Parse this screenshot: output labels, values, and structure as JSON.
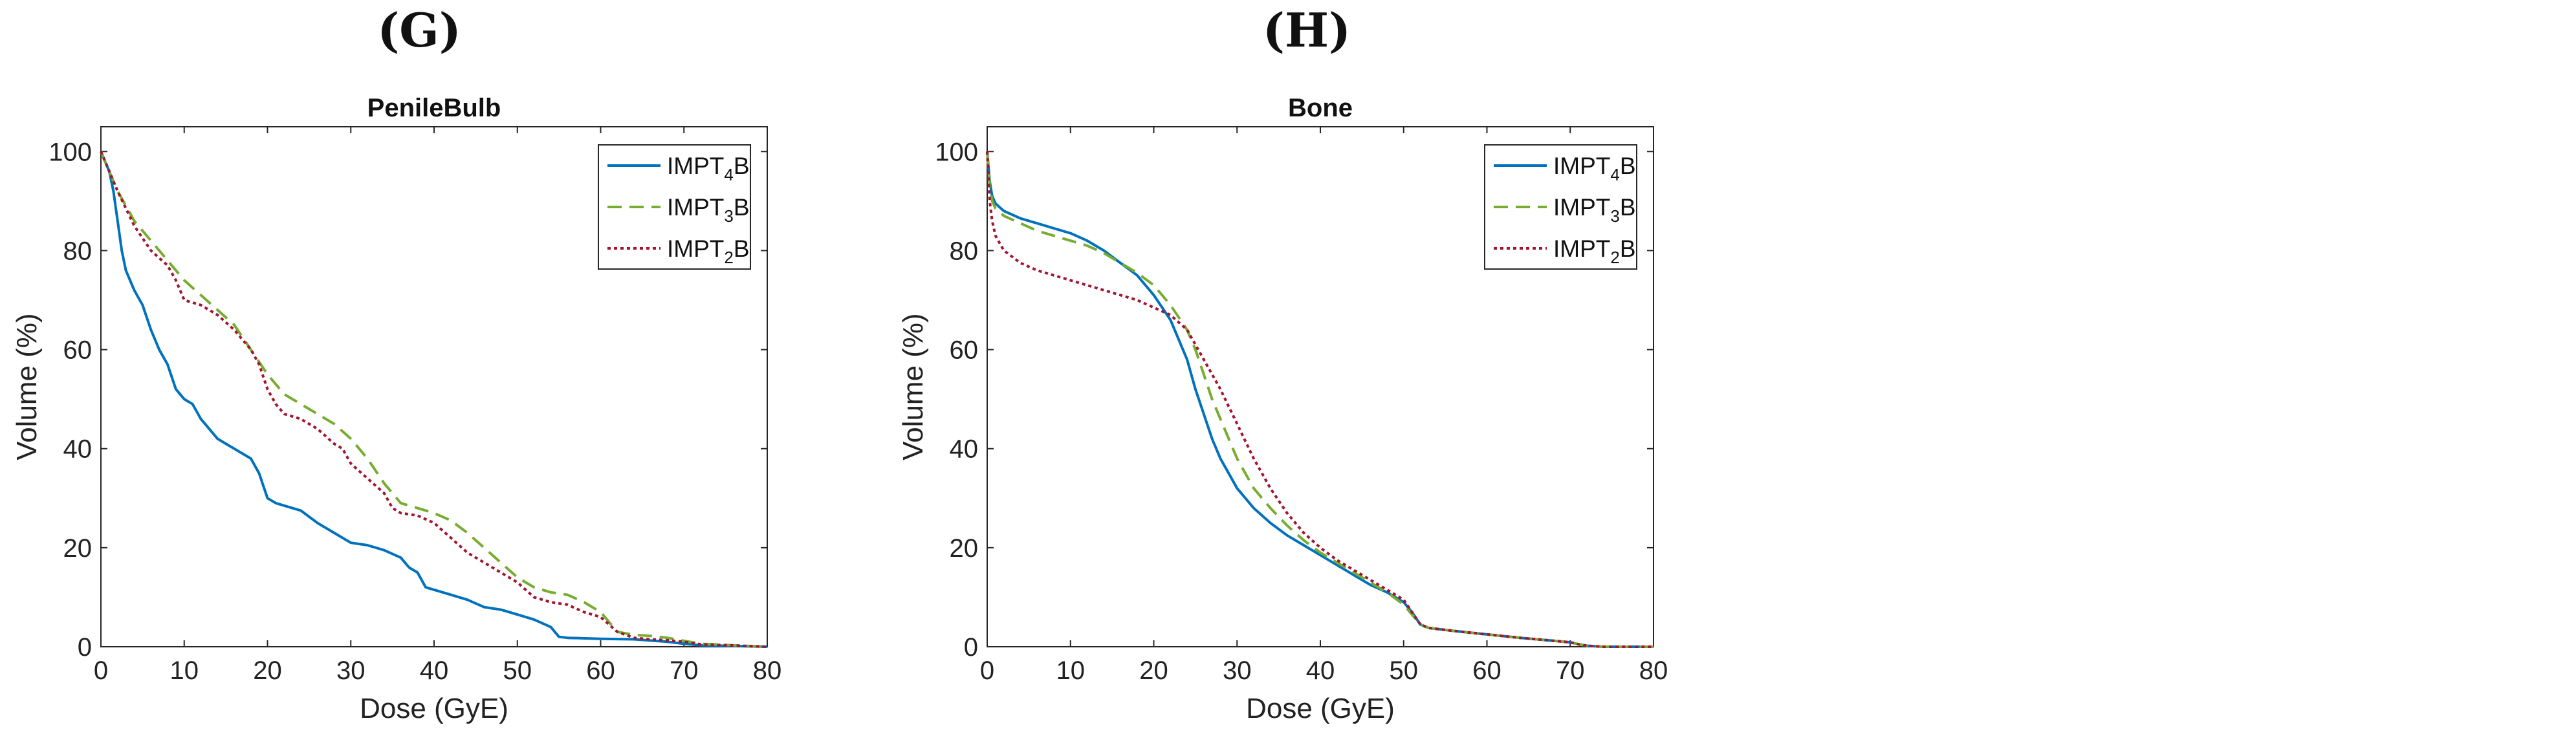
{
  "panels": [
    {
      "label": "(G)"
    },
    {
      "label": "(H)"
    }
  ],
  "chart_data": [
    {
      "type": "line",
      "title": "PenileBulb",
      "xlabel": "Dose (GyE)",
      "ylabel": "Volume (%)",
      "xlim": [
        0,
        80
      ],
      "ylim": [
        0,
        105
      ],
      "xticks": [
        0,
        10,
        20,
        30,
        40,
        50,
        60,
        70,
        80
      ],
      "yticks": [
        0,
        20,
        40,
        60,
        80,
        100
      ],
      "legend_position": "top-right",
      "series": [
        {
          "name": "IMPT4B",
          "base": "IMPT",
          "sub": "4",
          "suffix": "B",
          "color": "#0072BD",
          "style": "solid",
          "x": [
            0,
            1,
            1.5,
            2,
            2.5,
            3,
            4,
            5,
            6,
            7,
            8,
            9,
            10,
            11,
            12,
            13,
            14,
            15,
            16,
            17,
            18,
            19,
            20,
            21,
            22,
            24,
            26,
            28,
            30,
            32,
            34,
            36,
            37,
            38,
            39,
            40,
            42,
            44,
            46,
            48,
            50,
            52,
            54,
            55,
            56,
            60,
            64,
            68,
            70,
            72,
            80
          ],
          "y": [
            100,
            96,
            92,
            86,
            80,
            76,
            72,
            69,
            64,
            60,
            57,
            52,
            50,
            49,
            46,
            44,
            42,
            41,
            40,
            39,
            38,
            35,
            30,
            29,
            28.5,
            27.5,
            25,
            23,
            21,
            20.5,
            19.5,
            18,
            16,
            15,
            12,
            11.5,
            10.5,
            9.5,
            8,
            7.5,
            6.5,
            5.5,
            4,
            2,
            1.8,
            1.6,
            1.5,
            1.0,
            0.6,
            0.3,
            0
          ]
        },
        {
          "name": "IMPT3B",
          "base": "IMPT",
          "sub": "3",
          "suffix": "B",
          "color": "#77AC30",
          "style": "dashed",
          "x": [
            0,
            2,
            4,
            6,
            8,
            10,
            12,
            14,
            16,
            18,
            20,
            22,
            24,
            26,
            28,
            30,
            32,
            34,
            36,
            38,
            40,
            42,
            44,
            46,
            48,
            50,
            52,
            54,
            56,
            58,
            60,
            62,
            64,
            66,
            68,
            70,
            72,
            80
          ],
          "y": [
            100,
            92,
            86,
            82,
            78,
            74,
            71,
            68,
            65,
            60,
            55,
            51,
            49,
            47,
            45,
            42,
            38,
            33,
            29,
            28,
            27,
            25.5,
            23,
            20,
            17,
            14,
            12,
            11,
            10.5,
            9,
            7,
            3,
            2.4,
            2.2,
            1.8,
            1.2,
            0.6,
            0
          ]
        },
        {
          "name": "IMPT2B",
          "base": "IMPT",
          "sub": "2",
          "suffix": "B",
          "color": "#A2142F",
          "style": "dotted",
          "x": [
            0,
            2,
            4,
            6,
            8,
            9,
            10,
            12,
            14,
            16,
            18,
            19,
            20,
            21,
            22,
            24,
            26,
            28,
            29,
            30,
            32,
            34,
            35,
            36,
            38,
            40,
            42,
            44,
            46,
            48,
            50,
            52,
            54,
            56,
            58,
            60,
            62,
            64,
            66,
            68,
            70,
            72,
            80
          ],
          "y": [
            100,
            92,
            85,
            80,
            77,
            74,
            70,
            69,
            67,
            64,
            60,
            57,
            52,
            49,
            47,
            46,
            44,
            41,
            40,
            37,
            34,
            31,
            28,
            27,
            26.5,
            25,
            22,
            19,
            17,
            15,
            13,
            10,
            9,
            8.5,
            7,
            6,
            3,
            1.8,
            1.5,
            1.3,
            1.0,
            0.5,
            0
          ]
        }
      ]
    },
    {
      "type": "line",
      "title": "Bone",
      "xlabel": "Dose (GyE)",
      "ylabel": "Volume (%)",
      "xlim": [
        0,
        80
      ],
      "ylim": [
        0,
        105
      ],
      "xticks": [
        0,
        10,
        20,
        30,
        40,
        50,
        60,
        70,
        80
      ],
      "yticks": [
        0,
        20,
        40,
        60,
        80,
        100
      ],
      "legend_position": "top-right",
      "series": [
        {
          "name": "IMPT4B",
          "base": "IMPT",
          "sub": "4",
          "suffix": "B",
          "color": "#0072BD",
          "style": "solid",
          "x": [
            0,
            0.3,
            0.6,
            1,
            2,
            4,
            6,
            8,
            10,
            12,
            14,
            16,
            18,
            20,
            22,
            24,
            25,
            26,
            27,
            28,
            30,
            32,
            34,
            36,
            38,
            40,
            42,
            44,
            46,
            48,
            50,
            51,
            52,
            53,
            56,
            60,
            64,
            68,
            70,
            71,
            72,
            74,
            80
          ],
          "y": [
            100,
            94,
            91,
            89.5,
            88,
            86.5,
            85.5,
            84.5,
            83.5,
            82,
            80,
            77.5,
            75,
            71,
            66,
            58,
            52,
            47,
            42,
            38,
            32,
            28,
            25,
            22.5,
            20.5,
            18.5,
            16.5,
            14.5,
            12.5,
            11,
            9,
            7,
            4.5,
            3.8,
            3.2,
            2.5,
            1.8,
            1.2,
            0.9,
            0.5,
            0.2,
            0,
            0
          ]
        },
        {
          "name": "IMPT3B",
          "base": "IMPT",
          "sub": "3",
          "suffix": "B",
          "color": "#77AC30",
          "style": "dashed",
          "x": [
            0,
            0.3,
            0.6,
            1,
            2,
            4,
            6,
            8,
            10,
            12,
            14,
            16,
            18,
            20,
            22,
            24,
            25,
            26,
            27,
            28,
            30,
            32,
            34,
            36,
            38,
            40,
            42,
            44,
            46,
            48,
            50,
            51,
            52,
            53,
            56,
            60,
            64,
            68,
            70,
            71,
            72,
            74,
            80
          ],
          "y": [
            100,
            93,
            90,
            88.5,
            87,
            85.5,
            84,
            83,
            82,
            81,
            79.5,
            77.5,
            75.5,
            73,
            69,
            64,
            60,
            55,
            50,
            46,
            38,
            32,
            28,
            24.5,
            21.5,
            19,
            17,
            15,
            13,
            11,
            8.5,
            6.5,
            4.5,
            3.8,
            3.2,
            2.5,
            1.8,
            1.2,
            0.9,
            0.5,
            0.2,
            0,
            0
          ]
        },
        {
          "name": "IMPT2B",
          "base": "IMPT",
          "sub": "2",
          "suffix": "B",
          "color": "#A2142F",
          "style": "dotted",
          "x": [
            0,
            0.3,
            0.6,
            1,
            2,
            4,
            6,
            8,
            10,
            12,
            14,
            16,
            18,
            20,
            22,
            24,
            26,
            28,
            30,
            32,
            34,
            36,
            38,
            40,
            42,
            44,
            46,
            48,
            50,
            51,
            52,
            53,
            56,
            60,
            64,
            68,
            70,
            71,
            72,
            74,
            80
          ],
          "y": [
            100,
            90,
            86,
            83,
            80,
            77.5,
            76,
            75,
            74,
            73,
            72,
            71,
            70,
            68.5,
            67,
            64,
            58,
            52,
            45,
            38,
            32,
            27,
            23,
            20,
            17.5,
            15.5,
            13.5,
            11.5,
            9.5,
            7,
            4.5,
            3.8,
            3.2,
            2.5,
            1.8,
            1.2,
            0.9,
            0.5,
            0.2,
            0,
            0
          ]
        }
      ]
    }
  ]
}
